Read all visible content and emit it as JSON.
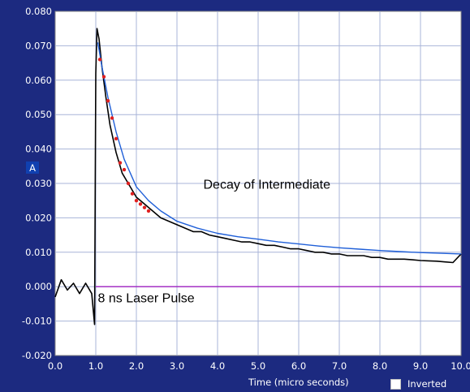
{
  "chart_data": {
    "type": "line",
    "xlabel": "Time (micro seconds)",
    "ylabel": "A",
    "xlim": [
      0.0,
      10.0
    ],
    "ylim": [
      -0.02,
      0.08
    ],
    "x_ticks": [
      "0.0",
      "1.0",
      "2.0",
      "3.0",
      "4.0",
      "5.0",
      "6.0",
      "7.0",
      "8.0",
      "9.0",
      "10.0"
    ],
    "y_ticks": [
      "-0.020",
      "-0.010",
      "0.000",
      "0.010",
      "0.020",
      "0.030",
      "0.040",
      "0.050",
      "0.060",
      "0.070",
      "0.080"
    ],
    "grid": true,
    "series": [
      {
        "role": "signal",
        "color": "#000000",
        "x": [
          0.0,
          0.15,
          0.3,
          0.45,
          0.6,
          0.75,
          0.9,
          0.97,
          1.0,
          1.03,
          1.08,
          1.15,
          1.25,
          1.35,
          1.5,
          1.65,
          1.8,
          2.0,
          2.2,
          2.4,
          2.6,
          2.8,
          3.0,
          3.2,
          3.4,
          3.6,
          3.8,
          4.0,
          4.2,
          4.4,
          4.6,
          4.8,
          5.0,
          5.2,
          5.4,
          5.6,
          5.8,
          6.0,
          6.2,
          6.4,
          6.6,
          6.8,
          7.0,
          7.2,
          7.4,
          7.6,
          7.8,
          8.0,
          8.2,
          8.4,
          8.6,
          8.8,
          9.0,
          9.2,
          9.4,
          9.6,
          9.8,
          10.0
        ],
        "y": [
          -0.003,
          0.002,
          -0.001,
          0.001,
          -0.002,
          0.001,
          -0.002,
          -0.011,
          0.062,
          0.075,
          0.072,
          0.064,
          0.055,
          0.047,
          0.039,
          0.033,
          0.03,
          0.026,
          0.024,
          0.022,
          0.02,
          0.019,
          0.018,
          0.017,
          0.016,
          0.016,
          0.015,
          0.0145,
          0.014,
          0.0135,
          0.013,
          0.013,
          0.0125,
          0.012,
          0.012,
          0.0115,
          0.011,
          0.011,
          0.0105,
          0.01,
          0.01,
          0.0095,
          0.0095,
          0.009,
          0.009,
          0.009,
          0.0085,
          0.0085,
          0.008,
          0.008,
          0.008,
          0.0078,
          0.0076,
          0.0075,
          0.0074,
          0.0072,
          0.007,
          0.0095
        ]
      },
      {
        "role": "fit",
        "color": "#1f5fd8",
        "x": [
          1.05,
          1.15,
          1.3,
          1.5,
          1.7,
          2.0,
          2.3,
          2.6,
          3.0,
          3.5,
          4.0,
          4.5,
          5.0,
          5.5,
          6.0,
          6.5,
          7.0,
          7.5,
          8.0,
          8.5,
          9.0,
          9.5,
          10.0
        ],
        "y": [
          0.071,
          0.064,
          0.055,
          0.045,
          0.037,
          0.029,
          0.025,
          0.022,
          0.019,
          0.017,
          0.0155,
          0.0145,
          0.0138,
          0.013,
          0.0124,
          0.0118,
          0.0113,
          0.0109,
          0.0105,
          0.0102,
          0.0099,
          0.0097,
          0.0095
        ]
      },
      {
        "role": "baseline",
        "color": "#a020c0",
        "x": [
          1.0,
          10.0
        ],
        "y": [
          0.0,
          0.0
        ]
      },
      {
        "role": "fit-points",
        "color": "#e02020",
        "x": [
          1.1,
          1.2,
          1.3,
          1.4,
          1.5,
          1.6,
          1.7,
          1.8,
          1.9,
          2.0,
          2.1,
          2.2,
          2.3
        ],
        "y": [
          0.066,
          0.061,
          0.054,
          0.049,
          0.043,
          0.036,
          0.034,
          0.03,
          0.027,
          0.025,
          0.024,
          0.023,
          0.022
        ]
      }
    ],
    "annotations": [
      {
        "text": "Decay of Intermediate",
        "x": 3.65,
        "y": 0.0285
      },
      {
        "text": "8 ns Laser Pulse",
        "x": 1.05,
        "y": -0.0045
      }
    ]
  },
  "footer": {
    "xlabel": "Time (micro seconds)",
    "inverted_label": "Inverted",
    "inverted_checked": false
  },
  "colors": {
    "frame": "#1c2a80",
    "plot_bg": "#ffffff",
    "grid": "#a8b4d8",
    "tick_text": "#ffffff"
  }
}
